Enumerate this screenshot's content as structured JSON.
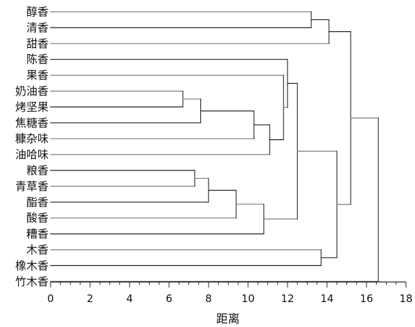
{
  "chart_data": {
    "type": "dendrogram",
    "orientation": "horizontal",
    "title": "",
    "xlabel": "距离",
    "ylabel": "",
    "xlim": [
      0,
      18
    ],
    "xticks": [
      "0",
      "2",
      "4",
      "6",
      "8",
      "10",
      "12",
      "14",
      "16",
      "18"
    ],
    "leaves": [
      "醇香",
      "清香",
      "甜香",
      "陈香",
      "果香",
      "奶油香",
      "烤坚果",
      "焦糖香",
      "糠杂味",
      "油哈味",
      "粮香",
      "青草香",
      "酯香",
      "酸香",
      "糟香",
      "木香",
      "橡木香",
      "竹木香"
    ],
    "merges": [
      {
        "id": "A",
        "left": "奶油香",
        "right": "烤坚果",
        "distance": 6.7
      },
      {
        "id": "B",
        "left": "粮香",
        "right": "青草香",
        "distance": 7.3
      },
      {
        "id": "C",
        "left": "B",
        "right": "酯香",
        "distance": 8.0
      },
      {
        "id": "D",
        "left": "C",
        "right": "酸香",
        "distance": 9.4
      },
      {
        "id": "E",
        "left": "A",
        "right": "焦糖香",
        "distance": 7.6
      },
      {
        "id": "F",
        "left": "E",
        "right": "糠杂味",
        "distance": 10.3
      },
      {
        "id": "G",
        "left": "D",
        "right": "糟香",
        "distance": 10.8
      },
      {
        "id": "H",
        "left": "F",
        "right": "油哈味",
        "distance": 11.1
      },
      {
        "id": "I",
        "left": "果香",
        "right": "H",
        "distance": 11.8
      },
      {
        "id": "J",
        "left": "陈香",
        "right": "I",
        "distance": 12.0
      },
      {
        "id": "K",
        "left": "醇香",
        "right": "清香",
        "distance": 13.2
      },
      {
        "id": "L",
        "left": "J",
        "right": "G",
        "distance": 12.5
      },
      {
        "id": "M",
        "left": "木香",
        "right": "橡木香",
        "distance": 13.7
      },
      {
        "id": "N",
        "left": "K",
        "right": "甜香",
        "distance": 14.1
      },
      {
        "id": "O",
        "left": "L",
        "right": "M",
        "distance": 14.5
      },
      {
        "id": "P",
        "left": "N",
        "right": "O",
        "distance": 15.2
      },
      {
        "id": "Q",
        "left": "P",
        "right": "竹木香",
        "distance": 16.6
      }
    ]
  }
}
